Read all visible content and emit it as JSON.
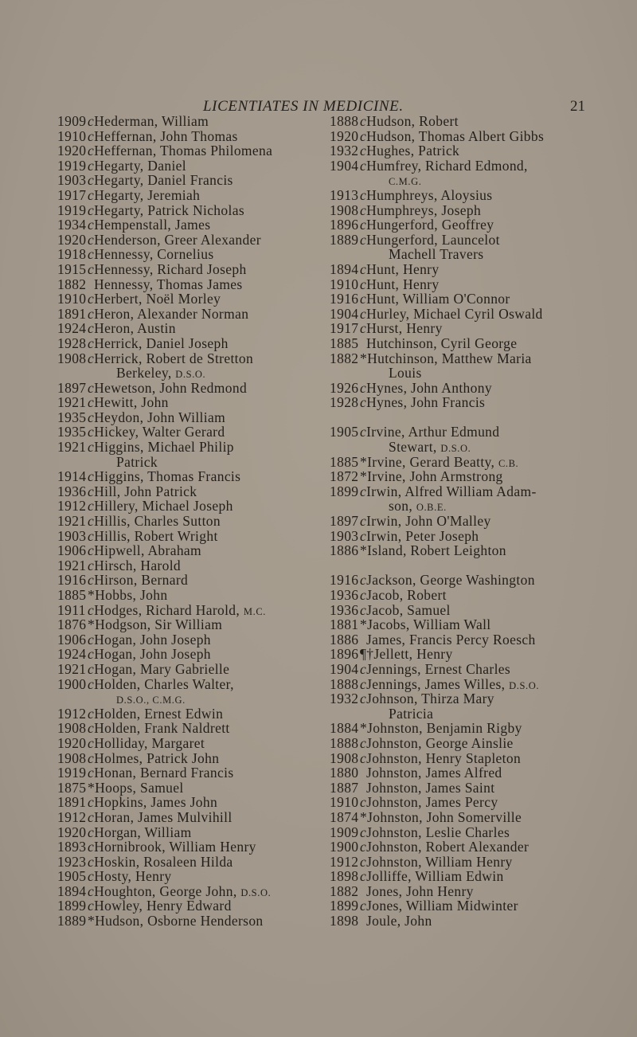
{
  "header": {
    "title": "LICENTIATES IN MEDICINE.",
    "page_number": "21"
  },
  "columns": [
    {
      "sections": [
        {
          "entries": [
            {
              "year": "1909",
              "mark": "c",
              "name": "Hederman, William"
            },
            {
              "year": "1910",
              "mark": "c",
              "name": "Heffernan, John Thomas"
            },
            {
              "year": "1920",
              "mark": "c",
              "name": "Heffernan, Thomas Philomena"
            },
            {
              "year": "1919",
              "mark": "c",
              "name": "Hegarty, Daniel"
            },
            {
              "year": "1903",
              "mark": "c",
              "name": "Hegarty, Daniel Francis"
            },
            {
              "year": "1917",
              "mark": "c",
              "name": "Hegarty, Jeremiah"
            },
            {
              "year": "1919",
              "mark": "c",
              "name": "Hegarty, Patrick Nicholas"
            },
            {
              "year": "1934",
              "mark": "c",
              "name": "Hempenstall, James"
            },
            {
              "year": "1920",
              "mark": "c",
              "name": "Henderson, Greer Alexander"
            },
            {
              "year": "1918",
              "mark": "c",
              "name": "Hennessy, Cornelius"
            },
            {
              "year": "1915",
              "mark": "c",
              "name": "Hennessy, Richard Joseph"
            },
            {
              "year": "1882",
              "mark": "",
              "name": "Hennessy, Thomas James"
            },
            {
              "year": "1910",
              "mark": "c",
              "name": "Herbert, Noël Morley"
            },
            {
              "year": "1891",
              "mark": "c",
              "name": "Heron, Alexander Norman"
            },
            {
              "year": "1924",
              "mark": "c",
              "name": "Heron, Austin"
            },
            {
              "year": "1928",
              "mark": "c",
              "name": "Herrick, Daniel Joseph"
            },
            {
              "year": "1908",
              "mark": "c",
              "name": "Herrick, Robert de Stretton",
              "cont": "Berkeley,",
              "cont_suffix": "d.s.o."
            },
            {
              "year": "1897",
              "mark": "c",
              "name": "Hewetson, John Redmond"
            },
            {
              "year": "1921",
              "mark": "c",
              "name": "Hewitt, John"
            },
            {
              "year": "1935",
              "mark": "c",
              "name": "Heydon, John William"
            },
            {
              "year": "1935",
              "mark": "c",
              "name": "Hickey, Walter Gerard"
            },
            {
              "year": "1921",
              "mark": "c",
              "name": "Higgins, Michael Philip",
              "cont": "Patrick"
            },
            {
              "year": "1914",
              "mark": "c",
              "name": "Higgins, Thomas Francis"
            },
            {
              "year": "1936",
              "mark": "c",
              "name": "Hill, John Patrick"
            },
            {
              "year": "1912",
              "mark": "c",
              "name": "Hillery, Michael Joseph"
            },
            {
              "year": "1921",
              "mark": "c",
              "name": "Hillis, Charles Sutton"
            },
            {
              "year": "1903",
              "mark": "c",
              "name": "Hillis, Robert Wright"
            },
            {
              "year": "1906",
              "mark": "c",
              "name": "Hipwell, Abraham"
            },
            {
              "year": "1921",
              "mark": "c",
              "name": "Hirsch, Harold"
            },
            {
              "year": "1916",
              "mark": "c",
              "name": "Hirson, Bernard"
            },
            {
              "year": "1885",
              "mark": "*",
              "name": "Hobbs, John"
            },
            {
              "year": "1911",
              "mark": "c",
              "name": "Hodges, Richard Harold,",
              "suffix": "m.c."
            },
            {
              "year": "1876",
              "mark": "*",
              "name": "Hodgson, Sir William"
            },
            {
              "year": "1906",
              "mark": "c",
              "name": "Hogan, John Joseph"
            },
            {
              "year": "1924",
              "mark": "c",
              "name": "Hogan, John Joseph"
            },
            {
              "year": "1921",
              "mark": "c",
              "name": "Hogan, Mary Gabrielle"
            },
            {
              "year": "1900",
              "mark": "c",
              "name": "Holden, Charles Walter,",
              "cont": "",
              "cont_suffix": "d.s.o., c.m.g."
            },
            {
              "year": "1912",
              "mark": "c",
              "name": "Holden, Ernest Edwin"
            },
            {
              "year": "1908",
              "mark": "c",
              "name": "Holden, Frank Naldrett"
            },
            {
              "year": "1920",
              "mark": "c",
              "name": "Holliday, Margaret"
            },
            {
              "year": "1908",
              "mark": "c",
              "name": "Holmes, Patrick John"
            },
            {
              "year": "1919",
              "mark": "c",
              "name": "Honan, Bernard Francis"
            },
            {
              "year": "1875",
              "mark": "*",
              "name": "Hoops, Samuel"
            },
            {
              "year": "1891",
              "mark": "c",
              "name": "Hopkins, James John"
            },
            {
              "year": "1912",
              "mark": "c",
              "name": "Horan, James Mulvihill"
            },
            {
              "year": "1920",
              "mark": "c",
              "name": "Horgan, William"
            },
            {
              "year": "1893",
              "mark": "c",
              "name": "Hornibrook, William Henry"
            },
            {
              "year": "1923",
              "mark": "c",
              "name": "Hoskin, Rosaleen Hilda"
            },
            {
              "year": "1905",
              "mark": "c",
              "name": "Hosty, Henry"
            },
            {
              "year": "1894",
              "mark": "c",
              "name": "Houghton, George John,",
              "suffix": "d.s.o."
            },
            {
              "year": "1899",
              "mark": "c",
              "name": "Howley, Henry Edward"
            },
            {
              "year": "1889",
              "mark": "*",
              "name": "Hudson, Osborne Henderson"
            }
          ]
        }
      ]
    },
    {
      "sections": [
        {
          "entries": [
            {
              "year": "1888",
              "mark": "c",
              "name": "Hudson, Robert"
            },
            {
              "year": "1920",
              "mark": "c",
              "name": "Hudson, Thomas Albert Gibbs"
            },
            {
              "year": "1932",
              "mark": "c",
              "name": "Hughes, Patrick"
            },
            {
              "year": "1904",
              "mark": "c",
              "name": "Humfrey, Richard Edmond,",
              "cont": "",
              "cont_suffix": "c.m.g."
            },
            {
              "year": "1913",
              "mark": "c",
              "name": "Humphreys, Aloysius"
            },
            {
              "year": "1908",
              "mark": "c",
              "name": "Humphreys, Joseph"
            },
            {
              "year": "1896",
              "mark": "c",
              "name": "Hungerford, Geoffrey"
            },
            {
              "year": "1889",
              "mark": "c",
              "name": "Hungerford, Launcelot",
              "cont": "Machell Travers"
            },
            {
              "year": "1894",
              "mark": "c",
              "name": "Hunt, Henry"
            },
            {
              "year": "1910",
              "mark": "c",
              "name": "Hunt, Henry"
            },
            {
              "year": "1916",
              "mark": "c",
              "name": "Hunt, William O'Connor"
            },
            {
              "year": "1904",
              "mark": "c",
              "name": "Hurley, Michael Cyril Oswald"
            },
            {
              "year": "1917",
              "mark": "c",
              "name": "Hurst, Henry"
            },
            {
              "year": "1885",
              "mark": "",
              "name": "Hutchinson, Cyril George"
            },
            {
              "year": "1882",
              "mark": "*",
              "name": "Hutchinson, Matthew Maria",
              "cont": "Louis"
            },
            {
              "year": "1926",
              "mark": "c",
              "name": "Hynes, John Anthony"
            },
            {
              "year": "1928",
              "mark": "c",
              "name": "Hynes, John Francis"
            }
          ]
        },
        {
          "entries": [
            {
              "year": "1905",
              "mark": "c",
              "name": "Irvine, Arthur Edmund",
              "cont": "Stewart,",
              "cont_suffix": "d.s.o."
            },
            {
              "year": "1885",
              "mark": "*",
              "name": "Irvine, Gerard Beatty,",
              "suffix": "c.b."
            },
            {
              "year": "1872",
              "mark": "*",
              "name": "Irvine, John Armstrong"
            },
            {
              "year": "1899",
              "mark": "c",
              "name": "Irwin, Alfred William Adam-",
              "cont": "son,",
              "cont_suffix": "o.b.e."
            },
            {
              "year": "1897",
              "mark": "c",
              "name": "Irwin, John O'Malley"
            },
            {
              "year": "1903",
              "mark": "c",
              "name": "Irwin, Peter Joseph"
            },
            {
              "year": "1886",
              "mark": "*",
              "name": "Island, Robert Leighton"
            }
          ]
        },
        {
          "entries": [
            {
              "year": "1916",
              "mark": "c",
              "name": "Jackson, George Washington"
            },
            {
              "year": "1936",
              "mark": "c",
              "name": "Jacob, Robert"
            },
            {
              "year": "1936",
              "mark": "c",
              "name": "Jacob, Samuel"
            },
            {
              "year": "1881",
              "mark": "*",
              "name": "Jacobs, William Wall"
            },
            {
              "year": "1886",
              "mark": "",
              "name": "James, Francis Percy Roesch"
            },
            {
              "year": "1896",
              "mark": "¶†",
              "name": "Jellett, Henry"
            },
            {
              "year": "1904",
              "mark": "c",
              "name": "Jennings, Ernest Charles"
            },
            {
              "year": "1888",
              "mark": "c",
              "name": "Jennings, James Willes,",
              "suffix": "d.s.o."
            },
            {
              "year": "1932",
              "mark": "c",
              "name": "Johnson, Thirza Mary",
              "cont": "Patricia"
            },
            {
              "year": "1884",
              "mark": "*",
              "name": "Johnston, Benjamin Rigby"
            },
            {
              "year": "1888",
              "mark": "c",
              "name": "Johnston, George Ainslie"
            },
            {
              "year": "1908",
              "mark": "c",
              "name": "Johnston, Henry Stapleton"
            },
            {
              "year": "1880",
              "mark": "",
              "name": "Johnston, James Alfred"
            },
            {
              "year": "1887",
              "mark": "",
              "name": "Johnston, James Saint"
            },
            {
              "year": "1910",
              "mark": "c",
              "name": "Johnston, James Percy"
            },
            {
              "year": "1874",
              "mark": "*",
              "name": "Johnston, John Somerville"
            },
            {
              "year": "1909",
              "mark": "c",
              "name": "Johnston, Leslie Charles"
            },
            {
              "year": "1900",
              "mark": "c",
              "name": "Johnston, Robert Alexander"
            },
            {
              "year": "1912",
              "mark": "c",
              "name": "Johnston, William Henry"
            },
            {
              "year": "1898",
              "mark": "c",
              "name": "Jolliffe, William Edwin"
            },
            {
              "year": "1882",
              "mark": "",
              "name": "Jones, John Henry"
            },
            {
              "year": "1899",
              "mark": "c",
              "name": "Jones, William Midwinter"
            },
            {
              "year": "1898",
              "mark": "",
              "name": "Joule, John"
            }
          ]
        }
      ]
    }
  ]
}
